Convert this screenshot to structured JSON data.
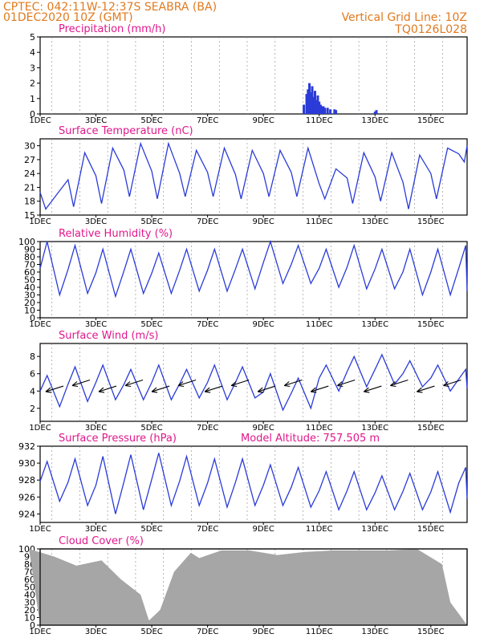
{
  "header": {
    "line1": "CPTEC:  042:11W-12:37S  SEABRA (BA)",
    "line2": "01DEC2020 10Z (GMT)",
    "right1": "Vertical Grid Line: 10Z",
    "right2": "TQ0126L028"
  },
  "colors": {
    "header": "#e07a1f",
    "title": "#e0188c",
    "line": "#2a3bd8",
    "cloud": "#a6a6a6",
    "arrow": "#000000"
  },
  "chart_data": [
    {
      "type": "bar",
      "title": "Precipitation (mm/h)",
      "x_ticks": [
        "1DEC",
        "3DEC",
        "5DEC",
        "7DEC",
        "9DEC",
        "11DEC",
        "13DEC",
        "15DEC"
      ],
      "ylim": [
        0,
        5
      ],
      "y_ticks": [
        0,
        1,
        2,
        3,
        4,
        5
      ],
      "bars_day_value": [
        [
          10.45,
          0.6
        ],
        [
          10.55,
          1.3
        ],
        [
          10.6,
          1.6
        ],
        [
          10.65,
          2.0
        ],
        [
          10.7,
          1.4
        ],
        [
          10.75,
          1.8
        ],
        [
          10.8,
          1.1
        ],
        [
          10.85,
          1.5
        ],
        [
          10.9,
          0.9
        ],
        [
          10.95,
          1.2
        ],
        [
          11.0,
          0.8
        ],
        [
          11.05,
          0.6
        ],
        [
          11.1,
          0.5
        ],
        [
          11.15,
          0.5
        ],
        [
          11.2,
          0.4
        ],
        [
          11.3,
          0.4
        ],
        [
          11.4,
          0.3
        ],
        [
          11.55,
          0.3
        ],
        [
          11.6,
          0.25
        ],
        [
          13.0,
          0.15
        ],
        [
          13.05,
          0.25
        ]
      ]
    },
    {
      "type": "line",
      "title": "Surface Temperature (nC)",
      "x_ticks": [
        "1DEC",
        "3DEC",
        "5DEC",
        "7DEC",
        "9DEC",
        "11DEC",
        "13DEC",
        "15DEC"
      ],
      "ylim": [
        15,
        31.5
      ],
      "y_ticks": [
        15,
        18,
        21,
        24,
        27,
        30
      ],
      "min_max": [
        [
          19.5,
          16.3
        ],
        [
          28.5,
          16.8
        ],
        [
          29.5,
          17.5
        ],
        [
          30.5,
          19.0
        ],
        [
          30.5,
          18.5
        ],
        [
          29.0,
          19.0
        ],
        [
          29.5,
          19.0
        ],
        [
          29.0,
          18.5
        ],
        [
          29.0,
          19.0
        ],
        [
          29.5,
          19.0
        ],
        [
          25.0,
          18.5
        ],
        [
          28.5,
          17.5
        ],
        [
          28.5,
          18.0
        ],
        [
          28.0,
          16.3
        ],
        [
          29.5,
          18.5
        ],
        [
          30.0,
          26.5
        ]
      ]
    },
    {
      "type": "line",
      "title": "Relative Humidity (%)",
      "x_ticks": [
        "1DEC",
        "3DEC",
        "5DEC",
        "7DEC",
        "9DEC",
        "11DEC",
        "13DEC",
        "15DEC"
      ],
      "ylim": [
        0,
        100
      ],
      "y_ticks": [
        0,
        10,
        20,
        30,
        40,
        50,
        60,
        70,
        80,
        90,
        100
      ],
      "max_min": [
        [
          100,
          30
        ],
        [
          95,
          32
        ],
        [
          90,
          28
        ],
        [
          90,
          32
        ],
        [
          85,
          32
        ],
        [
          90,
          35
        ],
        [
          90,
          35
        ],
        [
          90,
          38
        ],
        [
          100,
          45
        ],
        [
          95,
          45
        ],
        [
          90,
          40
        ],
        [
          95,
          38
        ],
        [
          90,
          38
        ],
        [
          90,
          30
        ],
        [
          90,
          30
        ],
        [
          95,
          35
        ]
      ]
    },
    {
      "type": "line",
      "title": "Surface Wind (m/s)",
      "x_ticks": [
        "1DEC",
        "3DEC",
        "5DEC",
        "7DEC",
        "9DEC",
        "11DEC",
        "13DEC",
        "15DEC"
      ],
      "ylim": [
        0.5,
        9.5
      ],
      "y_ticks": [
        2,
        4,
        6,
        8
      ],
      "max_min": [
        [
          5.8,
          2.2
        ],
        [
          6.8,
          2.8
        ],
        [
          7.0,
          3.0
        ],
        [
          6.5,
          3.0
        ],
        [
          7.0,
          3.0
        ],
        [
          6.5,
          3.2
        ],
        [
          7.0,
          3.0
        ],
        [
          6.8,
          3.2
        ],
        [
          6.0,
          1.8
        ],
        [
          5.5,
          2.0
        ],
        [
          7.0,
          4.0
        ],
        [
          8.0,
          4.5
        ],
        [
          8.2,
          4.8
        ],
        [
          7.5,
          4.5
        ],
        [
          7.0,
          4.0
        ],
        [
          6.5,
          4.3
        ]
      ]
    },
    {
      "type": "line",
      "title": "Surface Pressure (hPa)",
      "annotation": "Model Altitude: 757.505  m",
      "x_ticks": [
        "1DEC",
        "3DEC",
        "5DEC",
        "7DEC",
        "9DEC",
        "11DEC",
        "13DEC",
        "15DEC"
      ],
      "ylim": [
        923,
        932
      ],
      "y_ticks": [
        924,
        926,
        928,
        930,
        932
      ],
      "max_min": [
        [
          930.2,
          925.5
        ],
        [
          930.5,
          925.0
        ],
        [
          930.8,
          924.0
        ],
        [
          931.0,
          924.5
        ],
        [
          931.2,
          925.0
        ],
        [
          930.8,
          925.0
        ],
        [
          930.5,
          924.8
        ],
        [
          930.5,
          925.0
        ],
        [
          929.8,
          925.0
        ],
        [
          929.5,
          924.8
        ],
        [
          929.0,
          924.5
        ],
        [
          929.0,
          924.5
        ],
        [
          928.5,
          924.5
        ],
        [
          928.8,
          924.5
        ],
        [
          929.0,
          924.2
        ],
        [
          929.5,
          925.8
        ]
      ]
    },
    {
      "type": "area",
      "title": "Cloud Cover (%)",
      "x_ticks": [
        "1DEC",
        "3DEC",
        "5DEC",
        "7DEC",
        "9DEC",
        "11DEC",
        "13DEC",
        "15DEC"
      ],
      "ylim": [
        0,
        100
      ],
      "y_ticks": [
        0,
        10,
        20,
        30,
        40,
        50,
        60,
        70,
        80,
        90,
        100
      ],
      "day_value": [
        [
          0.6,
          100
        ],
        [
          1.5,
          90
        ],
        [
          2.3,
          78
        ],
        [
          3.2,
          85
        ],
        [
          3.9,
          60
        ],
        [
          4.6,
          40
        ],
        [
          4.9,
          6
        ],
        [
          5.3,
          20
        ],
        [
          5.8,
          70
        ],
        [
          6.4,
          95
        ],
        [
          6.7,
          88
        ],
        [
          7.5,
          98
        ],
        [
          8.5,
          98
        ],
        [
          9.5,
          92
        ],
        [
          10.5,
          96
        ],
        [
          11.5,
          98
        ],
        [
          12.5,
          98
        ],
        [
          13.5,
          98
        ],
        [
          14.5,
          100
        ],
        [
          15.4,
          80
        ],
        [
          15.7,
          30
        ],
        [
          16.0,
          15
        ]
      ]
    }
  ]
}
